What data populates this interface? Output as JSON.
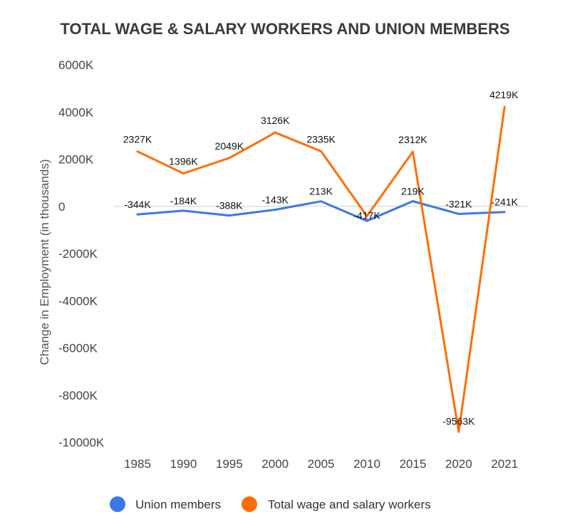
{
  "chart_data": {
    "type": "line",
    "title": "TOTAL WAGE & SALARY WORKERS AND UNION MEMBERS",
    "xlabel": "",
    "ylabel": "Change in Employment (in thousands)",
    "categories": [
      "1985",
      "1990",
      "1995",
      "2000",
      "2005",
      "2010",
      "2015",
      "2020",
      "2021"
    ],
    "ylim": [
      -10000,
      6000
    ],
    "yticks": [
      6000,
      4000,
      2000,
      0,
      -2000,
      -4000,
      -6000,
      -8000,
      -10000
    ],
    "ytick_labels": [
      "6000K",
      "4000K",
      "2000K",
      "0",
      "-2000K",
      "-4000K",
      "-6000K",
      "-8000K",
      "-10000K"
    ],
    "legend_position": "bottom",
    "series": [
      {
        "name": "Union members",
        "color": "#3b78e7",
        "values": [
          -344,
          -184,
          -388,
          -143,
          213,
          -617,
          219,
          -321,
          -241
        ],
        "labels": [
          "-344K",
          "-184K",
          "-388K",
          "-143K",
          "213K",
          "",
          "219K",
          "-321K",
          "-241K"
        ]
      },
      {
        "name": "Total wage and salary workers",
        "color": "#ff6d01",
        "values": [
          2327,
          1396,
          2049,
          3126,
          2335,
          -417,
          2312,
          -9563,
          4219
        ],
        "labels": [
          "2327K",
          "1396K",
          "2049K",
          "3126K",
          "2335K",
          "-417K",
          "2312K",
          "-9563K",
          "4219K"
        ]
      }
    ]
  }
}
